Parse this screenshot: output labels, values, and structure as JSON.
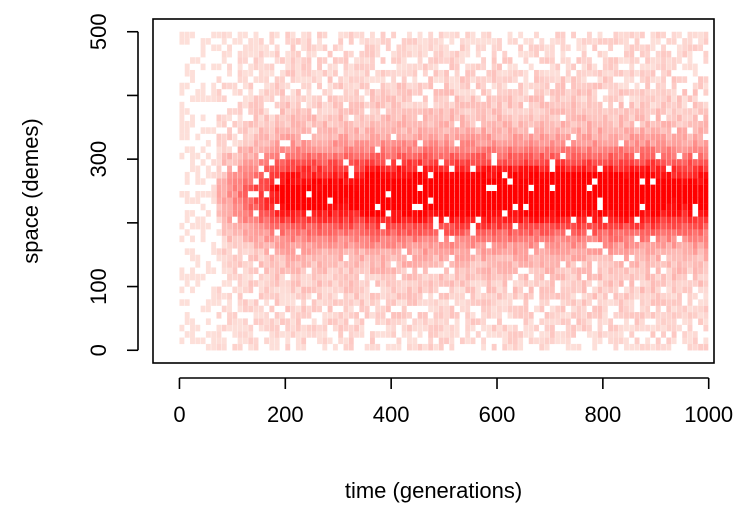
{
  "chart_data": {
    "type": "heatmap",
    "title": "",
    "xlabel": "time (generations)",
    "ylabel": "space (demes)",
    "xlim": [
      -50,
      1010
    ],
    "ylim": [
      -20,
      520
    ],
    "x_ticks": [
      0,
      200,
      400,
      600,
      800,
      1000
    ],
    "y_ticks": [
      0,
      100,
      300,
      500
    ],
    "y_minor_ticks": [
      200,
      400
    ],
    "grid": false,
    "legend": "none",
    "colors": {
      "low": "#fde6e0",
      "high": "#ff0000",
      "frame": "#000000",
      "background": "#ffffff"
    },
    "x_range": [
      0,
      1000
    ],
    "y_range": [
      0,
      500
    ],
    "cell_width_generations": 10,
    "cell_height_demes": 10,
    "density_profile": {
      "center_demes": 245,
      "core_half_width_demes": 45,
      "onset_generation": 40,
      "full_density_generation": 200,
      "peak_density_band": [
        350,
        900
      ]
    }
  }
}
